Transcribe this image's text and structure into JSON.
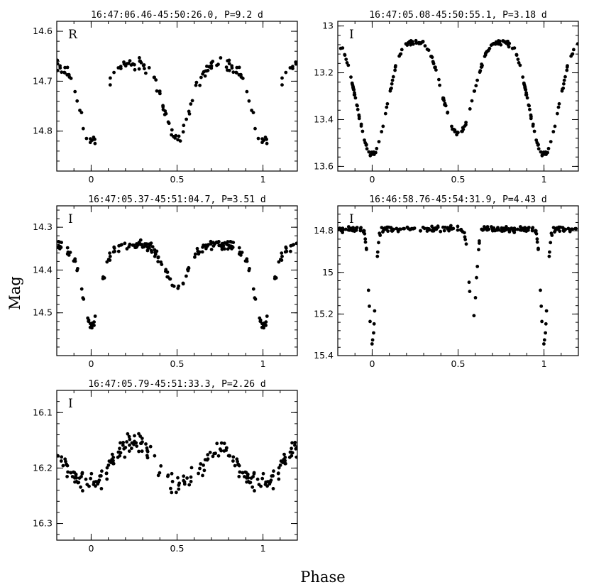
{
  "figure": {
    "xlabel": "Phase",
    "ylabel": "Mag"
  },
  "chart_data": [
    {
      "type": "scatter",
      "title": "16:47:06.46-45:50:26.0,   P=9.2 d",
      "band": "R",
      "xlim": [
        -0.2,
        1.2
      ],
      "ylim": [
        14.88,
        14.58
      ],
      "y_inverted": true,
      "xticks": [
        0,
        0.5,
        1
      ],
      "xtick_labels": [
        "0",
        "0.5",
        "1"
      ],
      "yticks": [
        14.6,
        14.7,
        14.8
      ],
      "ytick_labels": [
        "14.6",
        "14.7",
        "14.8"
      ],
      "curve": {
        "shape": "two_dips",
        "base": 14.665,
        "depth1": 0.14,
        "width1": 0.06,
        "depth2": 0.13,
        "width2": 0.07,
        "secondary_phase": 0.5,
        "noise": 0.012,
        "points_per_cycle": 110,
        "gap": [
          0.05,
          0.11
        ]
      }
    },
    {
      "type": "scatter",
      "title": "16:47:05.08-45:50:55.1,   P=3.18 d",
      "band": "I",
      "xlim": [
        -0.2,
        1.2
      ],
      "ylim": [
        13.62,
        12.98
      ],
      "y_inverted": true,
      "xticks": [
        0,
        0.5,
        1
      ],
      "xtick_labels": [
        "0",
        "0.5",
        "1"
      ],
      "yticks": [
        13,
        13.2,
        13.4,
        13.6
      ],
      "ytick_labels": [
        "13",
        "13.2",
        "13.4",
        "13.6"
      ],
      "curve": {
        "shape": "ellipsoidal",
        "base": 13.07,
        "depth1": 0.48,
        "width1": 0.1,
        "depth2": 0.39,
        "width2": 0.1,
        "secondary_phase": 0.5,
        "noise": 0.01,
        "points_per_cycle": 170,
        "gap": null
      }
    },
    {
      "type": "scatter",
      "title": "16:47:05.37-45:51:04.7,   P=3.51 d",
      "band": "I",
      "xlim": [
        -0.2,
        1.2
      ],
      "ylim": [
        14.6,
        14.25
      ],
      "y_inverted": true,
      "xticks": [
        0,
        0.5,
        1
      ],
      "xtick_labels": [
        "0",
        "0.5",
        "1"
      ],
      "yticks": [
        14.3,
        14.4,
        14.5
      ],
      "ytick_labels": [
        "14.3",
        "14.4",
        "14.5"
      ],
      "curve": {
        "shape": "two_dips",
        "base": 14.34,
        "depth1": 0.17,
        "width1": 0.05,
        "depth2": 0.08,
        "width2": 0.06,
        "secondary_phase": 0.5,
        "noise": 0.012,
        "points_per_cycle": 150,
        "gap": null
      }
    },
    {
      "type": "scatter",
      "title": "16:46:58.76-45:54:31.9,   P=4.43 d",
      "band": "I",
      "xlim": [
        -0.2,
        1.2
      ],
      "ylim": [
        15.4,
        14.68
      ],
      "y_inverted": true,
      "xticks": [
        0,
        0.5,
        1
      ],
      "xtick_labels": [
        "0",
        "0.5",
        "1"
      ],
      "yticks": [
        14.8,
        15,
        15.2,
        15.4
      ],
      "ytick_labels": [
        "14.8",
        "15",
        "15.2",
        "15.4"
      ],
      "curve": {
        "shape": "detached",
        "base": 14.79,
        "depth1": 0.55,
        "width1": 0.018,
        "depth2": 0.45,
        "width2": 0.02,
        "secondary_phase": 0.585,
        "noise": 0.015,
        "points_per_cycle": 170,
        "gap": null
      }
    },
    {
      "type": "scatter",
      "title": "16:47:05.79-45:51:33.3,   P=2.26 d",
      "band": "I",
      "xlim": [
        -0.2,
        1.2
      ],
      "ylim": [
        16.33,
        16.06
      ],
      "y_inverted": true,
      "xticks": [
        0,
        0.5,
        1
      ],
      "xtick_labels": [
        "0",
        "0.5",
        "1"
      ],
      "yticks": [
        16.1,
        16.2,
        16.3
      ],
      "ytick_labels": [
        "16.1",
        "16.2",
        "16.3"
      ],
      "curve": {
        "shape": "sinusoid",
        "base": 16.16,
        "depth1": 0.07,
        "width1": 0.1,
        "depth2": 0.07,
        "width2": 0.1,
        "secondary_phase": 0.5,
        "noise": 0.018,
        "points_per_cycle": 150,
        "gap": null
      }
    }
  ]
}
